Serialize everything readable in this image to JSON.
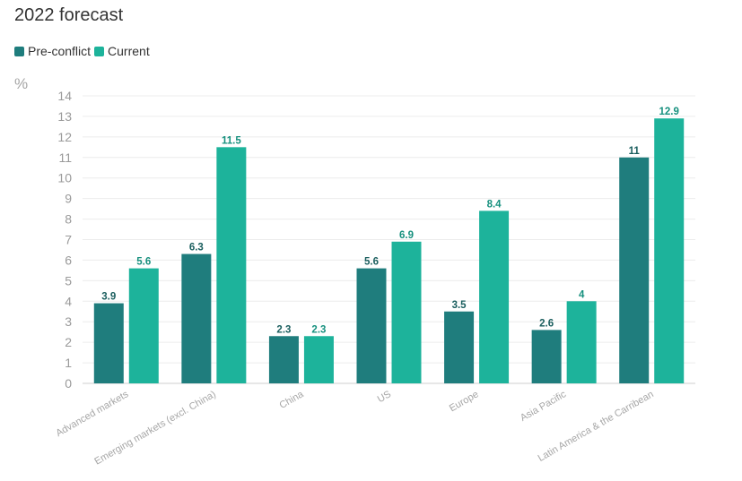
{
  "chart_data": {
    "type": "bar",
    "title": "2022 forecast",
    "ylabel": "%",
    "ylim": [
      0,
      14
    ],
    "yticks": [
      0,
      1,
      2,
      3,
      4,
      5,
      6,
      7,
      8,
      9,
      10,
      11,
      12,
      13,
      14
    ],
    "grid": true,
    "legend_position": "top-left",
    "categories": [
      "Advanced markets",
      "Emerging markets (excl. China)",
      "China",
      "US",
      "Europe",
      "Asia Pacific",
      "Latin America & the Carribean"
    ],
    "series": [
      {
        "name": "Pre-conflict",
        "color": "#1f7d7d",
        "label_color": "#1a5e5e",
        "values": [
          3.9,
          6.3,
          2.3,
          5.6,
          3.5,
          2.6,
          11
        ]
      },
      {
        "name": "Current",
        "color": "#1db39b",
        "label_color": "#16907e",
        "values": [
          5.6,
          11.5,
          2.3,
          6.9,
          8.4,
          4,
          12.9
        ]
      }
    ]
  }
}
